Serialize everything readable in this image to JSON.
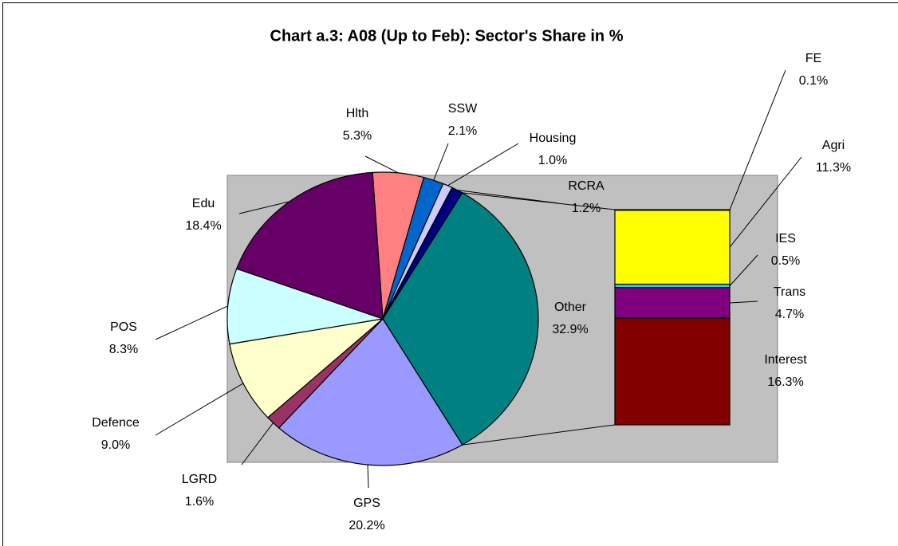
{
  "chart_data": {
    "type": "pie-of-bar",
    "title": "Chart a.3: A08 (Up to Feb): Sector's Share in %",
    "categories": [
      "Hlth",
      "SSW",
      "Housing",
      "RCRA",
      "Other",
      "GPS",
      "LGRD",
      "Defence",
      "POS",
      "Edu"
    ],
    "values": [
      5.3,
      2.1,
      1.0,
      1.2,
      32.9,
      20.2,
      1.6,
      9.0,
      8.3,
      18.4
    ],
    "value_labels": [
      "5.3%",
      "2.1%",
      "1.0%",
      "1.2%",
      "32.9%",
      "20.2%",
      "1.6%",
      "9.0%",
      "8.3%",
      "18.4%"
    ],
    "colors": [
      "#ff8080",
      "#0066cc",
      "#ccccff",
      "#000080",
      "#008080",
      "#9999ff",
      "#993366",
      "#ffffcc",
      "#ccffff",
      "#660066"
    ],
    "breakdown": {
      "categories": [
        "FE",
        "Agri",
        "IES",
        "Trans",
        "Interest"
      ],
      "values": [
        0.1,
        11.3,
        0.5,
        4.7,
        16.3
      ],
      "value_labels": [
        "0.1%",
        "11.3%",
        "0.5%",
        "4.7%",
        "16.3%"
      ],
      "colors": [
        "#ffffff",
        "#ffff00",
        "#33cccc",
        "#800080",
        "#800000"
      ]
    }
  }
}
